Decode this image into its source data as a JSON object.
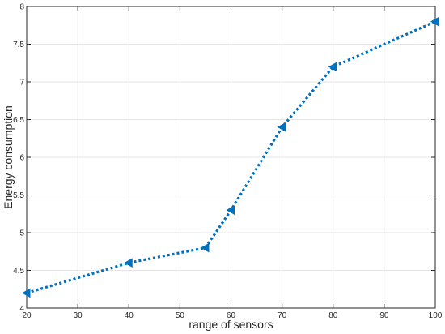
{
  "chart_data": {
    "type": "line",
    "title": "",
    "xlabel": "range of sensors",
    "ylabel": "Energy consumption",
    "xlim": [
      20,
      100
    ],
    "ylim": [
      4,
      8
    ],
    "xticks": [
      20,
      30,
      40,
      50,
      60,
      70,
      80,
      90,
      100
    ],
    "yticks": [
      4,
      4.5,
      5,
      5.5,
      6,
      6.5,
      7,
      7.5,
      8
    ],
    "grid": true,
    "legend": "none",
    "series": [
      {
        "x": [
          20,
          40,
          55,
          60,
          70,
          80,
          100
        ],
        "y": [
          4.2,
          4.6,
          4.8,
          5.3,
          6.4,
          7.2,
          7.8
        ],
        "color": "#0072BD",
        "line_style": "dotted",
        "marker": "left-triangle"
      }
    ]
  }
}
